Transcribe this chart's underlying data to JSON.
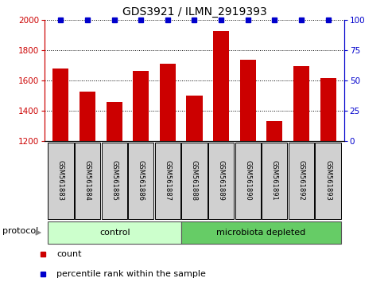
{
  "title": "GDS3921 / ILMN_2919393",
  "samples": [
    "GSM561883",
    "GSM561884",
    "GSM561885",
    "GSM561886",
    "GSM561887",
    "GSM561888",
    "GSM561889",
    "GSM561890",
    "GSM561891",
    "GSM561892",
    "GSM561893"
  ],
  "counts": [
    1680,
    1525,
    1455,
    1665,
    1710,
    1500,
    1925,
    1735,
    1330,
    1695,
    1615
  ],
  "percentile_ranks": [
    100,
    100,
    100,
    100,
    100,
    100,
    100,
    100,
    100,
    100,
    100
  ],
  "bar_color": "#cc0000",
  "dot_color": "#0000cc",
  "ylim_left": [
    1200,
    2000
  ],
  "ylim_right": [
    0,
    100
  ],
  "yticks_left": [
    1200,
    1400,
    1600,
    1800,
    2000
  ],
  "yticks_right": [
    0,
    25,
    50,
    75,
    100
  ],
  "groups": [
    {
      "label": "control",
      "start": 0,
      "end": 5,
      "color": "#ccffcc"
    },
    {
      "label": "microbiota depleted",
      "start": 6,
      "end": 10,
      "color": "#66cc66"
    }
  ],
  "protocol_label": "protocol",
  "legend_items": [
    {
      "color": "#cc0000",
      "label": "count"
    },
    {
      "color": "#0000cc",
      "label": "percentile rank within the sample"
    }
  ],
  "background_color": "#ffffff",
  "plot_bg_color": "#ffffff",
  "title_fontsize": 10,
  "axis_label_color_left": "#cc0000",
  "axis_label_color_right": "#0000cc"
}
